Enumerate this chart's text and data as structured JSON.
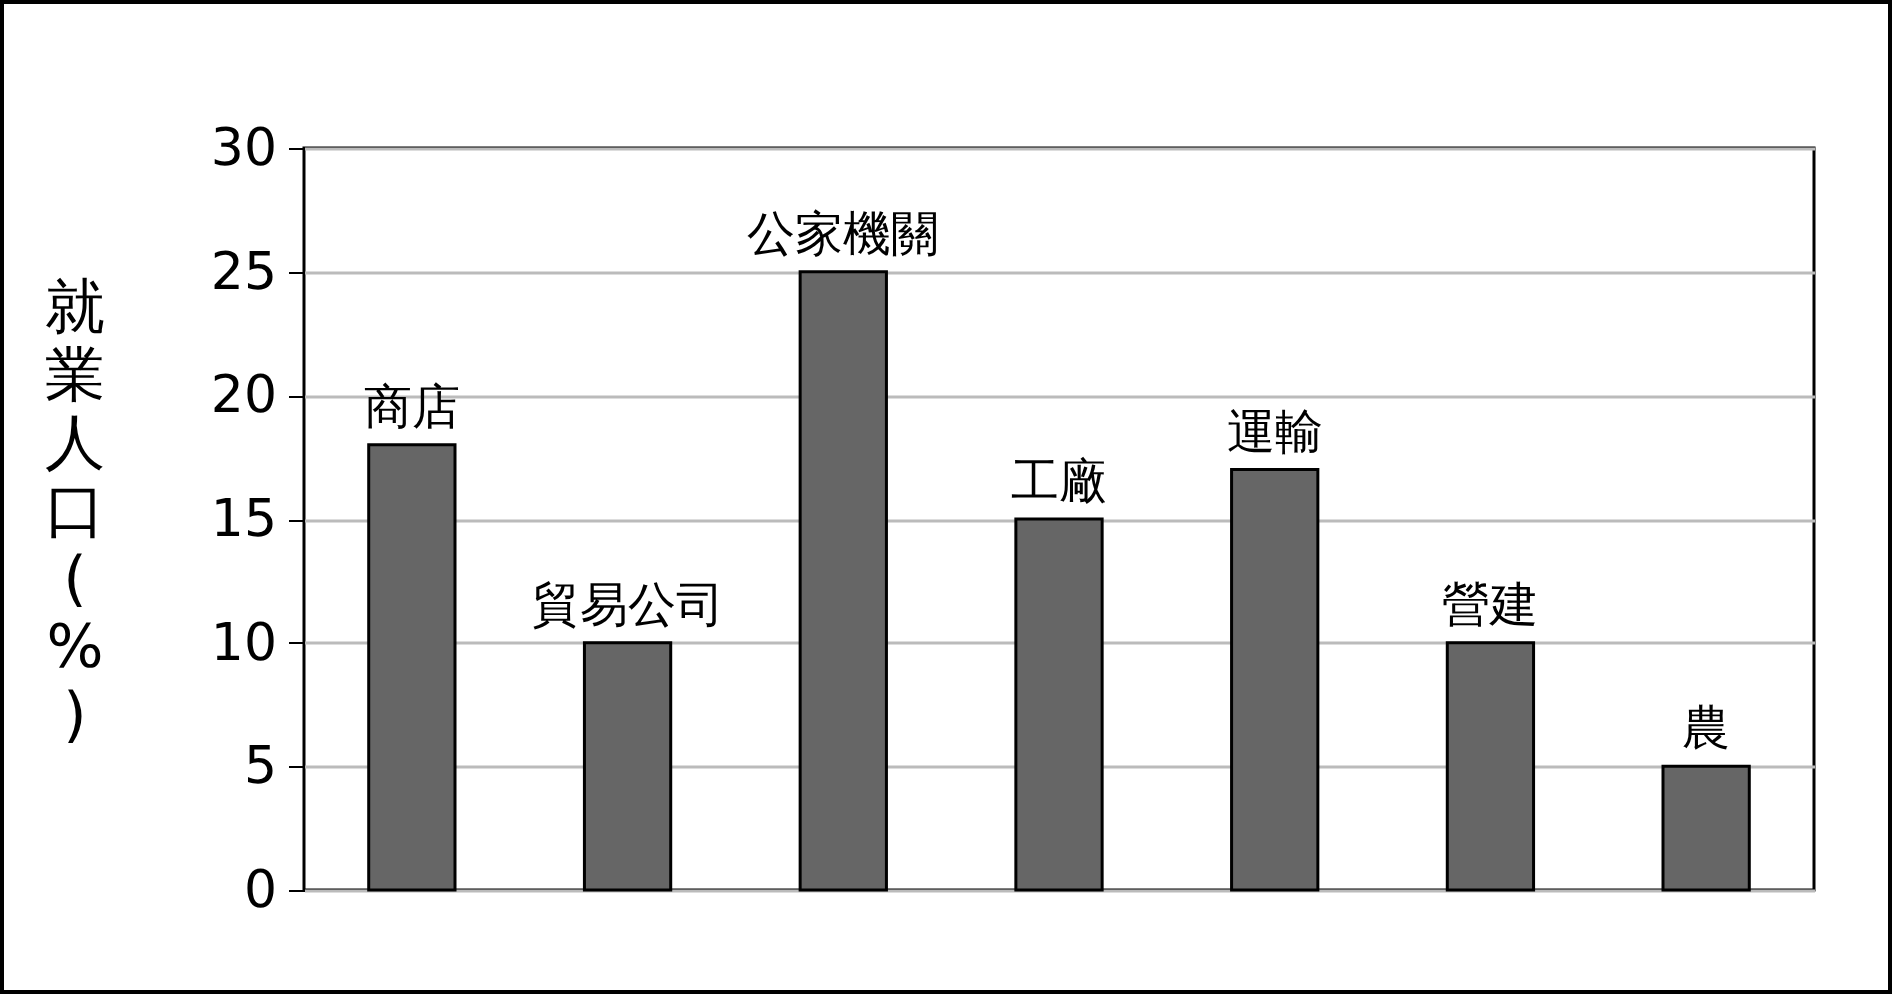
{
  "chart_data": {
    "type": "bar",
    "ylabel": "就業人口(%)",
    "categories": [
      "商店",
      "貿易公司",
      "公家機關",
      "工廠",
      "運輸",
      "營建",
      "農"
    ],
    "values": [
      18,
      10,
      25,
      15,
      17,
      10,
      5
    ],
    "color": "#666666",
    "ylim": [
      0,
      30
    ],
    "yticks": [
      0,
      5,
      10,
      15,
      20,
      25,
      30
    ],
    "grid": "y",
    "tick_labels": "y"
  }
}
